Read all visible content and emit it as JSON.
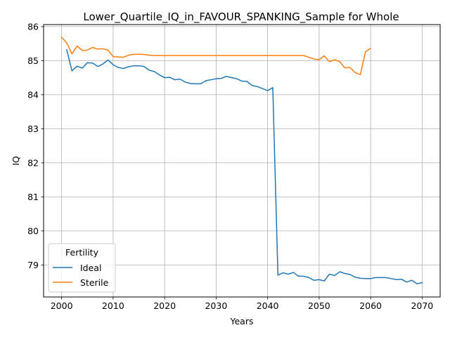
{
  "chart_data": {
    "type": "line",
    "title": "Lower_Quartile_IQ_in_FAVOUR_SPANKING_Sample for Whole",
    "xlabel": "Years",
    "ylabel": "IQ",
    "xlim": [
      1996.5,
      2073.5
    ],
    "ylim": [
      78.06,
      86.06
    ],
    "xticks": [
      2000,
      2010,
      2020,
      2030,
      2040,
      2050,
      2060,
      2070
    ],
    "yticks": [
      79,
      80,
      81,
      82,
      83,
      84,
      85,
      86
    ],
    "grid": true,
    "legend": {
      "title": "Fertility",
      "placement": "lower-left"
    },
    "series": [
      {
        "name": "Ideal",
        "color": "#1f77b4",
        "x": [
          2001,
          2002,
          2003,
          2004,
          2005,
          2006,
          2007,
          2008,
          2009,
          2010,
          2011,
          2012,
          2013,
          2014,
          2015,
          2016,
          2017,
          2018,
          2019,
          2020,
          2021,
          2022,
          2023,
          2024,
          2025,
          2026,
          2027,
          2028,
          2029,
          2030,
          2031,
          2032,
          2033,
          2034,
          2035,
          2036,
          2037,
          2038,
          2039,
          2040,
          2041,
          2042,
          2043,
          2044,
          2045,
          2046,
          2047,
          2048,
          2049,
          2050,
          2051,
          2052,
          2053,
          2054,
          2055,
          2056,
          2057,
          2058,
          2059,
          2060,
          2061,
          2062,
          2063,
          2064,
          2065,
          2066,
          2067,
          2068,
          2069,
          2070
        ],
        "values": [
          85.32,
          84.7,
          84.84,
          84.78,
          84.94,
          84.93,
          84.83,
          84.9,
          85.02,
          84.88,
          84.8,
          84.77,
          84.82,
          84.85,
          84.85,
          84.83,
          84.72,
          84.68,
          84.58,
          84.5,
          84.51,
          84.44,
          84.46,
          84.37,
          84.33,
          84.32,
          84.32,
          84.41,
          84.44,
          84.47,
          84.48,
          84.54,
          84.5,
          84.47,
          84.4,
          84.39,
          84.27,
          84.24,
          84.18,
          84.12,
          84.21,
          78.7,
          78.77,
          78.73,
          78.78,
          78.67,
          78.67,
          78.63,
          78.55,
          78.57,
          78.53,
          78.73,
          78.69,
          78.8,
          78.75,
          78.72,
          78.64,
          78.61,
          78.6,
          78.6,
          78.63,
          78.63,
          78.63,
          78.6,
          78.57,
          78.58,
          78.5,
          78.55,
          78.45,
          78.48
        ]
      },
      {
        "name": "Sterile",
        "color": "#ff7f0e",
        "x": [
          2000,
          2001,
          2002,
          2003,
          2004,
          2005,
          2006,
          2007,
          2008,
          2009,
          2010,
          2011,
          2012,
          2013,
          2014,
          2015,
          2016,
          2017,
          2018,
          2019,
          2020,
          2021,
          2022,
          2023,
          2024,
          2025,
          2026,
          2027,
          2028,
          2029,
          2030,
          2031,
          2032,
          2033,
          2034,
          2035,
          2036,
          2037,
          2038,
          2039,
          2040,
          2041,
          2042,
          2043,
          2044,
          2045,
          2046,
          2047,
          2048,
          2049,
          2050,
          2051,
          2052,
          2053,
          2054,
          2055,
          2056,
          2057,
          2058,
          2059,
          2060
        ],
        "values": [
          85.69,
          85.52,
          85.2,
          85.43,
          85.3,
          85.31,
          85.39,
          85.34,
          85.35,
          85.31,
          85.12,
          85.11,
          85.1,
          85.16,
          85.19,
          85.19,
          85.18,
          85.16,
          85.15,
          85.15,
          85.15,
          85.15,
          85.15,
          85.15,
          85.15,
          85.15,
          85.15,
          85.15,
          85.15,
          85.15,
          85.15,
          85.15,
          85.15,
          85.15,
          85.15,
          85.15,
          85.15,
          85.15,
          85.15,
          85.15,
          85.15,
          85.15,
          85.15,
          85.15,
          85.15,
          85.15,
          85.15,
          85.15,
          85.1,
          85.05,
          85.03,
          85.14,
          84.97,
          85.03,
          84.97,
          84.79,
          84.8,
          84.65,
          84.59,
          85.26,
          85.36
        ]
      }
    ]
  }
}
